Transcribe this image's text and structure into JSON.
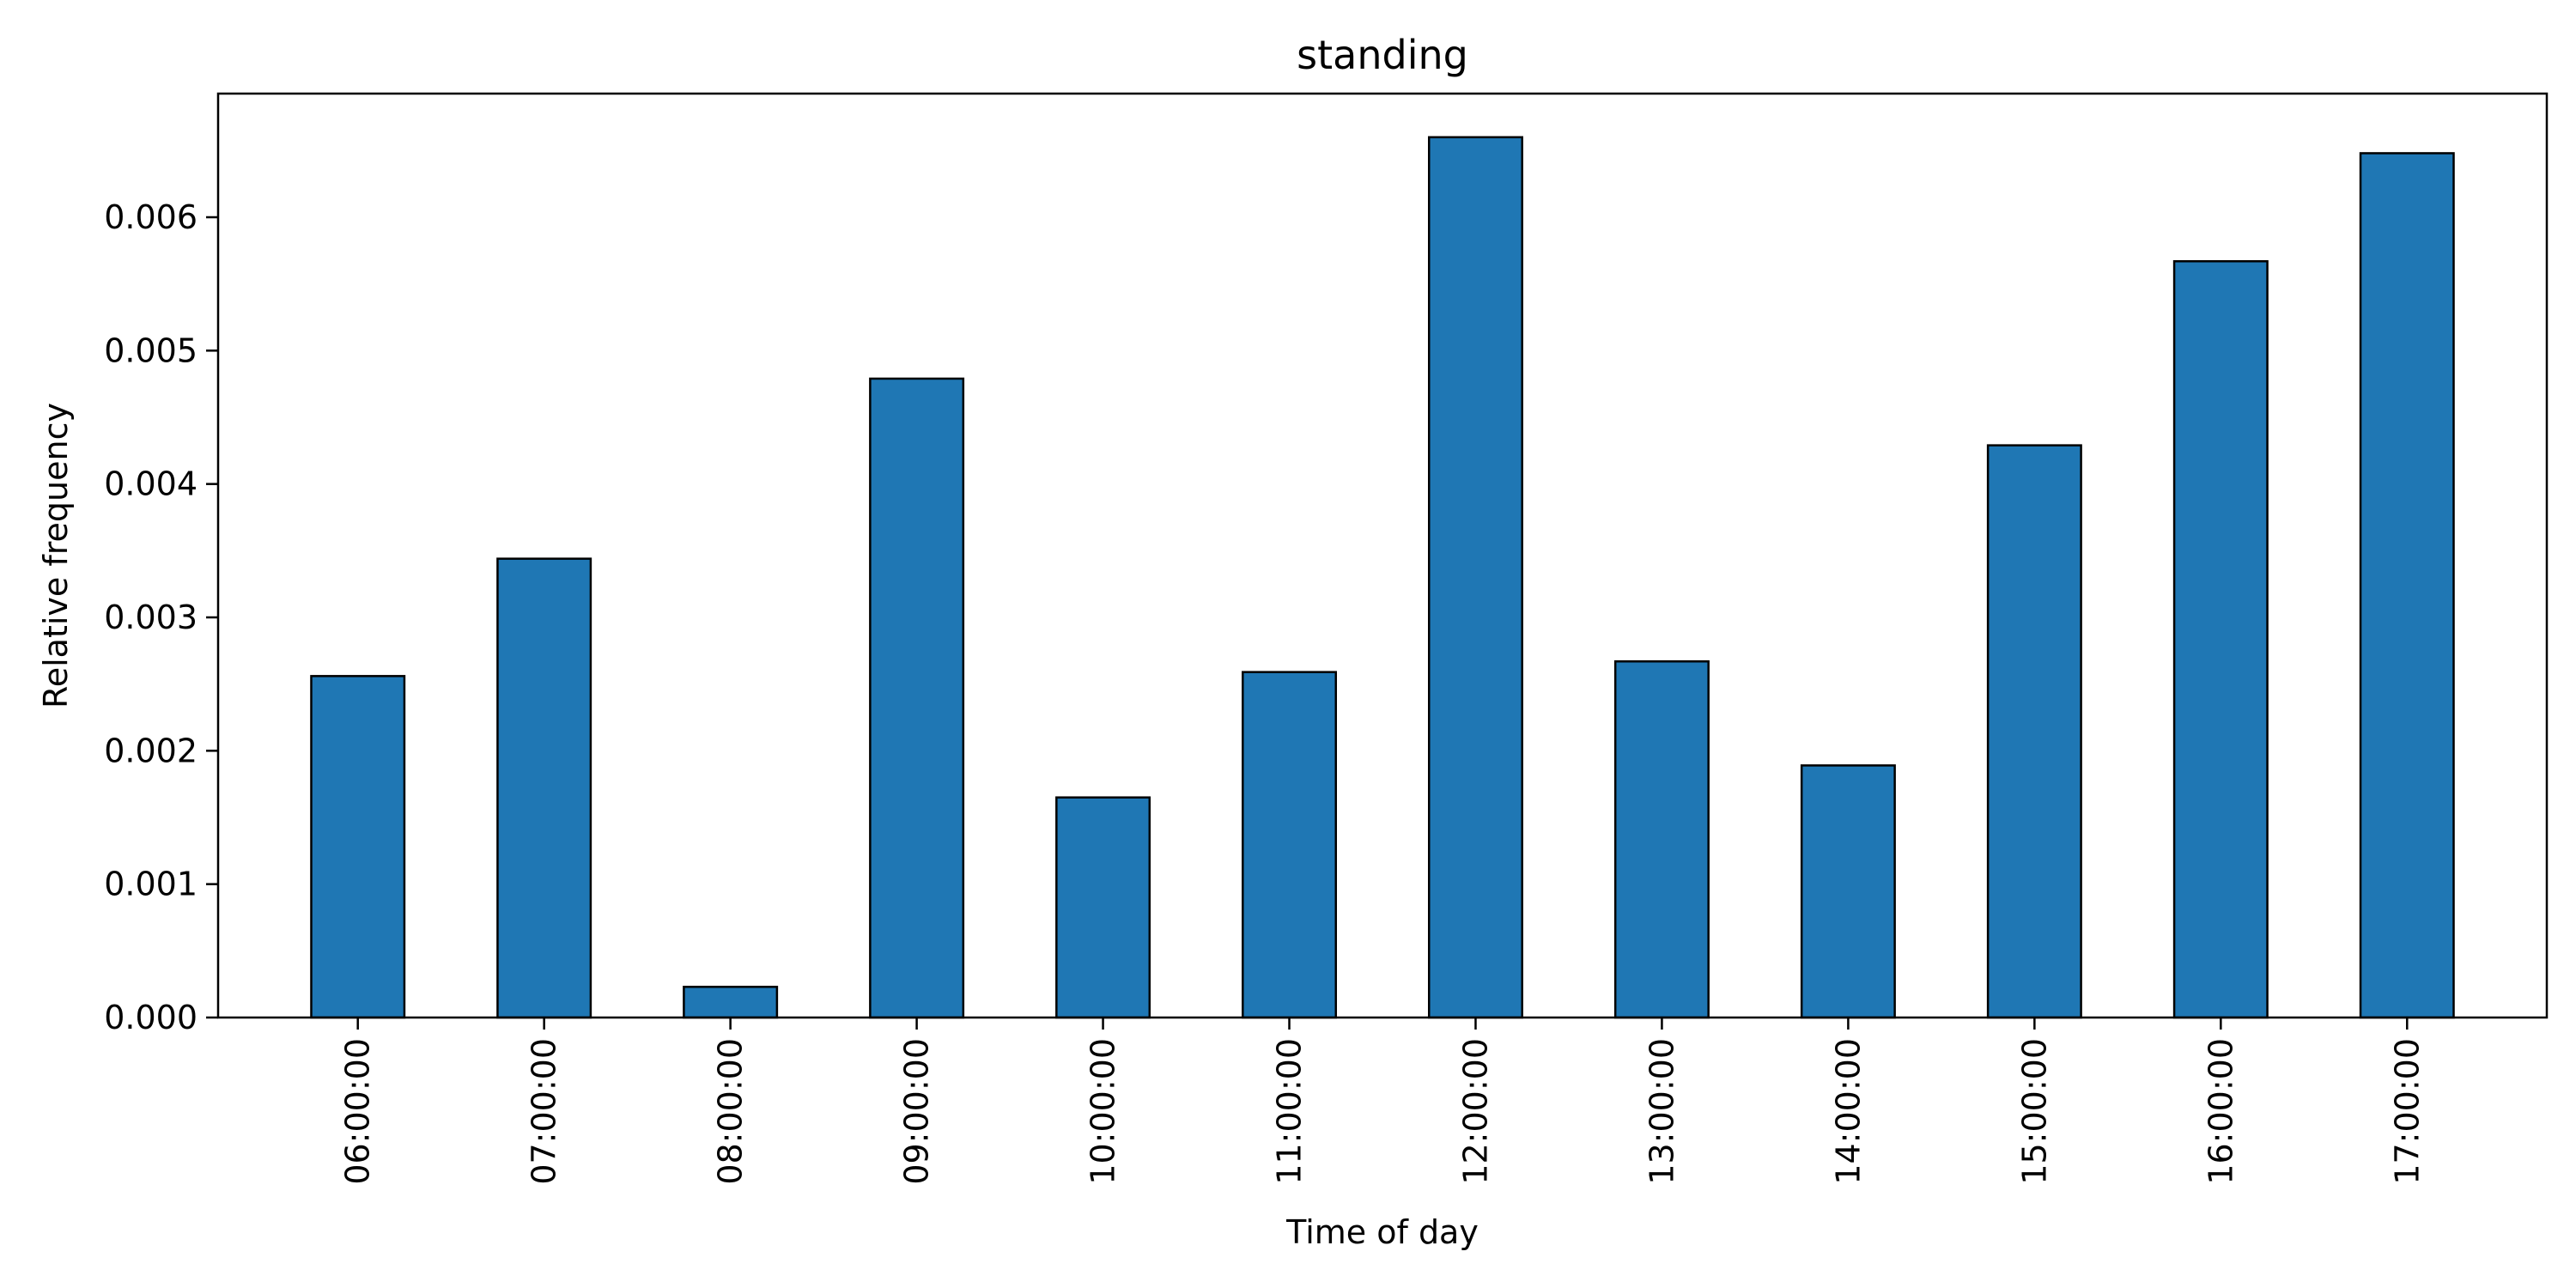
{
  "chart_data": {
    "type": "bar",
    "title": "standing",
    "xlabel": "Time of day",
    "ylabel": "Relative frequency",
    "categories": [
      "06:00:00",
      "07:00:00",
      "08:00:00",
      "09:00:00",
      "10:00:00",
      "11:00:00",
      "12:00:00",
      "13:00:00",
      "14:00:00",
      "15:00:00",
      "16:00:00",
      "17:00:00"
    ],
    "values": [
      0.00256,
      0.00344,
      0.00023,
      0.00479,
      0.00165,
      0.00259,
      0.0066,
      0.00267,
      0.00189,
      0.00429,
      0.00567,
      0.00648
    ],
    "ylim": [
      0,
      0.006927
    ],
    "yticks": [
      "0.000",
      "0.001",
      "0.002",
      "0.003",
      "0.004",
      "0.005",
      "0.006"
    ],
    "grid": false,
    "colors": {
      "bar_fill": "#1f77b4",
      "bar_edge": "#000000",
      "axes": "#000000"
    }
  }
}
